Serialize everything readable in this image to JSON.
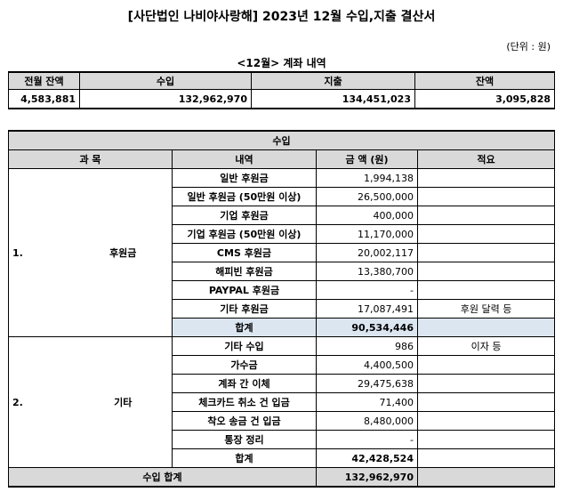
{
  "title": "[사단법인 나비야사랑해] 2023년 12월 수입,지출 결산서",
  "unit": "(단위 : 원)",
  "subtitle": "<12월> 계좌 내역",
  "summary": {
    "headers": [
      "전월 잔액",
      "수입",
      "지출",
      "잔액"
    ],
    "values": [
      "4,583,881",
      "132,962,970",
      "134,451,023",
      "3,095,828"
    ]
  },
  "income": {
    "title": "수입",
    "headers": [
      "과 목",
      "내역",
      "금 액 (원)",
      "적요"
    ],
    "sections": [
      {
        "num": "1.",
        "name": "후원금",
        "rows": [
          {
            "item": "일반 후원금",
            "amount": "1,994,138",
            "note": ""
          },
          {
            "item": "일반 후원금 (50만원 이상)",
            "amount": "26,500,000",
            "note": ""
          },
          {
            "item": "기업 후원금",
            "amount": "400,000",
            "note": ""
          },
          {
            "item": "기업 후원금 (50만원 이상)",
            "amount": "11,170,000",
            "note": ""
          },
          {
            "item": "CMS 후원금",
            "amount": "20,002,117",
            "note": ""
          },
          {
            "item": "해피빈 후원금",
            "amount": "13,380,700",
            "note": ""
          },
          {
            "item": "PAYPAL 후원금",
            "amount": "-",
            "note": ""
          },
          {
            "item": "기타 후원금",
            "amount": "17,087,491",
            "note": "후원 달력 등"
          }
        ],
        "subtotal_label": "합계",
        "subtotal": "90,534,446"
      },
      {
        "num": "2.",
        "name": "기타",
        "rows": [
          {
            "item": "기타 수입",
            "amount": "986",
            "note": "이자 등"
          },
          {
            "item": "가수금",
            "amount": "4,400,500",
            "note": ""
          },
          {
            "item": "계좌 간 이체",
            "amount": "29,475,638",
            "note": ""
          },
          {
            "item": "체크카드 취소 건 입금",
            "amount": "71,400",
            "note": ""
          },
          {
            "item": "착오 송금 건 입금",
            "amount": "8,480,000",
            "note": ""
          },
          {
            "item": "통장 정리",
            "amount": "-",
            "note": ""
          }
        ],
        "subtotal_label": "합계",
        "subtotal": "42,428,524"
      }
    ],
    "total_label": "수입 합계",
    "total": "132,962,970"
  }
}
